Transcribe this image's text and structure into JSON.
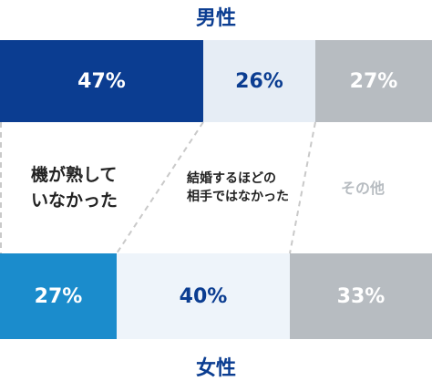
{
  "chart_data": {
    "type": "bar",
    "orientation": "horizontal",
    "stacked": "100%",
    "categories": [
      "機が熟していなかった",
      "結婚するほどの相手ではなかった",
      "その他"
    ],
    "category_labels": [
      [
        "機が熟して",
        "いなかった"
      ],
      [
        "結婚するほどの",
        "相手ではなかった"
      ],
      [
        "その他"
      ]
    ],
    "series": [
      {
        "name": "男性",
        "values": [
          47,
          26,
          27
        ],
        "value_labels": [
          "47%",
          "26%",
          "27%"
        ],
        "colors": [
          "#0b3d91",
          "#e6edf5",
          "#b7bcc1"
        ],
        "label_colors": [
          "#ffffff",
          "#0b3d91",
          "#ffffff"
        ]
      },
      {
        "name": "女性",
        "values": [
          27,
          40,
          33
        ],
        "value_labels": [
          "27%",
          "40%",
          "33%"
        ],
        "colors": [
          "#1b8ccc",
          "#eef4fa",
          "#b7bcc1"
        ],
        "label_colors": [
          "#ffffff",
          "#0b3d91",
          "#ffffff"
        ]
      }
    ],
    "category_label_colors": [
      "#222222",
      "#222222",
      "#b7bcc1"
    ],
    "title_color": "#0b3d91",
    "connector_color": "#c9c9c9"
  }
}
